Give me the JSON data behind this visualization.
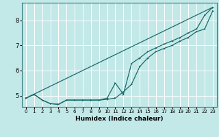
{
  "xlabel": "Humidex (Indice chaleur)",
  "x_ticks": [
    0,
    1,
    2,
    3,
    4,
    5,
    6,
    7,
    8,
    9,
    10,
    11,
    12,
    13,
    14,
    15,
    16,
    17,
    18,
    19,
    20,
    21,
    22,
    23
  ],
  "y_ticks": [
    5,
    6,
    7,
    8
  ],
  "xlim": [
    -0.5,
    23.5
  ],
  "ylim": [
    4.55,
    8.7
  ],
  "background_color": "#c3e8e8",
  "grid_color": "#ffffff",
  "line_color": "#1a6b6b",
  "curve1_x": [
    0,
    1,
    2,
    3,
    4,
    5,
    6,
    7,
    8,
    9,
    10,
    11,
    12,
    13,
    14,
    15,
    16,
    17,
    18,
    19,
    20,
    21,
    22,
    23
  ],
  "curve1_y": [
    4.9,
    5.05,
    4.82,
    4.68,
    4.65,
    4.82,
    4.82,
    4.82,
    4.82,
    4.82,
    4.85,
    4.9,
    5.15,
    5.45,
    6.15,
    6.5,
    6.75,
    6.88,
    7.0,
    7.18,
    7.32,
    7.55,
    7.65,
    8.38
  ],
  "curve2_x": [
    0,
    1,
    2,
    3,
    4,
    5,
    6,
    7,
    8,
    9,
    10,
    11,
    12,
    13,
    14,
    15,
    16,
    17,
    18,
    19,
    20,
    21,
    22,
    23
  ],
  "curve2_y": [
    4.9,
    5.05,
    4.82,
    4.68,
    4.65,
    4.82,
    4.82,
    4.82,
    4.82,
    4.82,
    4.9,
    5.5,
    5.05,
    6.28,
    6.5,
    6.75,
    6.9,
    7.05,
    7.18,
    7.32,
    7.5,
    7.65,
    8.2,
    8.52
  ],
  "line1_x": [
    0,
    23
  ],
  "line1_y": [
    4.9,
    8.52
  ]
}
